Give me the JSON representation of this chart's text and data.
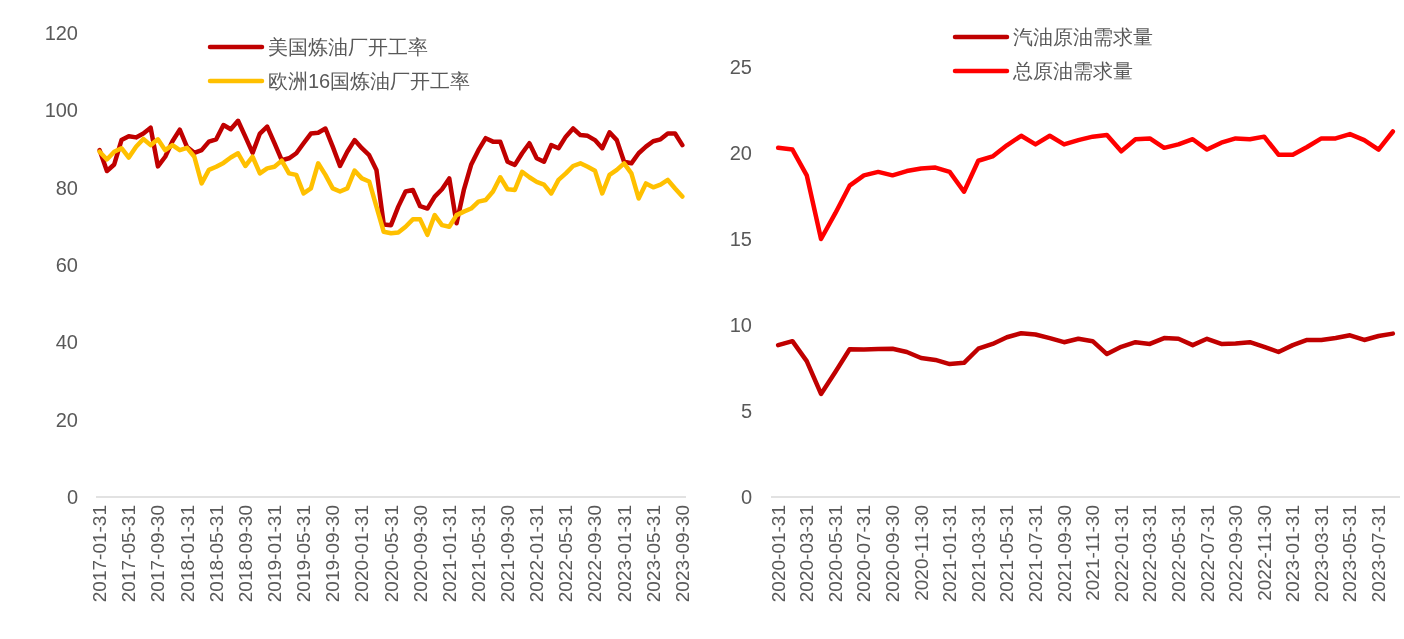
{
  "chart_data": [
    {
      "type": "line",
      "categories": [
        "2017-01-31",
        null,
        null,
        null,
        "2017-05-31",
        null,
        null,
        null,
        "2017-09-30",
        null,
        null,
        null,
        "2018-01-31",
        null,
        null,
        null,
        "2018-05-31",
        null,
        null,
        null,
        "2018-09-30",
        null,
        null,
        null,
        "2019-01-31",
        null,
        null,
        null,
        "2019-05-31",
        null,
        null,
        null,
        "2019-09-30",
        null,
        null,
        null,
        "2020-01-31",
        null,
        null,
        null,
        "2020-05-31",
        null,
        null,
        null,
        "2020-09-30",
        null,
        null,
        null,
        "2021-01-31",
        null,
        null,
        null,
        "2021-05-31",
        null,
        null,
        null,
        "2021-09-30",
        null,
        null,
        null,
        "2022-01-31",
        null,
        null,
        null,
        "2022-05-31",
        null,
        null,
        null,
        "2022-09-30",
        null,
        null,
        null,
        "2023-01-31",
        null,
        null,
        null,
        "2023-05-31",
        null,
        null,
        null,
        "2023-09-30"
      ],
      "ylim": [
        0,
        120
      ],
      "yticks": [
        0,
        20,
        40,
        60,
        80,
        100,
        120
      ],
      "legend": "top",
      "line_style": "solid",
      "marker": "none",
      "series": [
        {
          "name": "美国炼油厂开工率",
          "color": "#c00000",
          "values": [
            89.7,
            84.3,
            86,
            92.3,
            93.3,
            93,
            94,
            95.5,
            85.5,
            88,
            92,
            95,
            90.5,
            89,
            89.7,
            91.9,
            92.5,
            96.2,
            95.1,
            97.3,
            93.2,
            89,
            94,
            95.8,
            91.5,
            87.1,
            87.6,
            88.9,
            91.5,
            94,
            94.2,
            95.3,
            90.6,
            85.6,
            89.3,
            92.3,
            90.2,
            88.4,
            84.6,
            70.5,
            70.3,
            75.1,
            79,
            79.4,
            75.2,
            74.6,
            77.7,
            79.6,
            82.4,
            70.8,
            79.4,
            85.9,
            89.7,
            92.8,
            91.9,
            91.9,
            86.7,
            85.9,
            88.9,
            91.5,
            87.6,
            86.7,
            91,
            90.2,
            93.2,
            95.3,
            93.6,
            93.4,
            92.3,
            90.2,
            94.3,
            92.3,
            86.7,
            86.3,
            88.9,
            90.6,
            92,
            92.5,
            94,
            94,
            91
          ]
        },
        {
          "name": "欧洲16国炼油厂开工率",
          "color": "#ffc000",
          "values": [
            89.3,
            87.3,
            89.3,
            90.2,
            87.8,
            90.6,
            92.6,
            91,
            92.5,
            89.7,
            91,
            89.7,
            90.3,
            88,
            81.1,
            84.6,
            85.4,
            86.4,
            87.8,
            88.9,
            85.6,
            88,
            83.7,
            85,
            85.4,
            87,
            83.7,
            83.3,
            78.5,
            79.8,
            86.3,
            83.3,
            79.8,
            79,
            79.8,
            84.4,
            82.4,
            81.6,
            75.1,
            68.6,
            68.2,
            68.4,
            69.9,
            71.8,
            71.8,
            67.8,
            72.9,
            70.3,
            69.9,
            72.9,
            73.8,
            74.6,
            76.4,
            76.8,
            79,
            82.7,
            79.6,
            79.4,
            84.1,
            82.7,
            81.5,
            80.8,
            78.5,
            82,
            83.7,
            85.6,
            86.3,
            85.4,
            84.4,
            78.5,
            83.3,
            84.6,
            86.3,
            83.7,
            77.2,
            81.1,
            80.1,
            80.8,
            82,
            79.8,
            77.7
          ]
        }
      ]
    },
    {
      "type": "line",
      "categories": [
        "2020-01-31",
        null,
        "2020-03-31",
        null,
        "2020-05-31",
        null,
        "2020-07-31",
        null,
        "2020-09-30",
        null,
        "2020-11-30",
        null,
        "2021-01-31",
        null,
        "2021-03-31",
        null,
        "2021-05-31",
        null,
        "2021-07-31",
        null,
        "2021-09-30",
        null,
        "2021-11-30",
        null,
        "2022-01-31",
        null,
        "2022-03-31",
        null,
        "2022-05-31",
        null,
        "2022-07-31",
        null,
        "2022-09-30",
        null,
        "2022-11-30",
        null,
        "2023-01-31",
        null,
        "2023-03-31",
        null,
        "2023-05-31",
        null,
        "2023-07-31",
        null
      ],
      "ylim": [
        0,
        25
      ],
      "yticks": [
        0,
        5,
        10,
        15,
        20,
        25
      ],
      "legend": "top",
      "line_style": "solid",
      "marker": "none",
      "series": [
        {
          "name": "汽油原油需求量",
          "color": "#c00000",
          "values": [
            8.83,
            9.06,
            7.9,
            5.99,
            7.27,
            8.59,
            8.57,
            8.6,
            8.62,
            8.43,
            8.08,
            7.97,
            7.73,
            7.8,
            8.62,
            8.9,
            9.29,
            9.52,
            9.45,
            9.24,
            9,
            9.2,
            9.06,
            8.31,
            8.73,
            9,
            8.9,
            9.24,
            9.2,
            8.83,
            9.2,
            8.9,
            8.92,
            9,
            8.73,
            8.43,
            8.83,
            9.13,
            9.13,
            9.24,
            9.4,
            9.13,
            9.36,
            9.5
          ]
        },
        {
          "name": "总原油需求量",
          "color": "#ff0000",
          "values": [
            20.3,
            20.2,
            18.7,
            15,
            16.5,
            18.1,
            18.7,
            18.9,
            18.7,
            18.95,
            19.1,
            19.15,
            18.9,
            17.75,
            19.55,
            19.8,
            20.45,
            21,
            20.5,
            21,
            20.5,
            20.75,
            20.95,
            21.05,
            20.1,
            20.8,
            20.85,
            20.3,
            20.5,
            20.8,
            20.2,
            20.6,
            20.85,
            20.8,
            20.95,
            19.9,
            19.9,
            20.35,
            20.85,
            20.85,
            21.1,
            20.75,
            20.2,
            21.25
          ]
        }
      ]
    }
  ]
}
